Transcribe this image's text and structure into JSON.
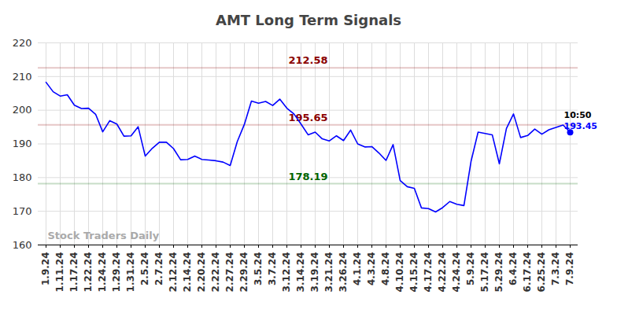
{
  "chart_data": {
    "type": "line",
    "title": "AMT Long Term Signals",
    "categories": [
      "1.9.24",
      null,
      "1.11.24",
      null,
      "1.17.24",
      null,
      "1.22.24",
      null,
      "1.24.24",
      null,
      "1.29.24",
      null,
      "1.31.24",
      null,
      "2.5.24",
      null,
      "2.7.24",
      null,
      "2.12.24",
      null,
      "2.14.24",
      null,
      "2.20.24",
      null,
      "2.22.24",
      null,
      "2.27.24",
      null,
      "2.29.24",
      null,
      "3.5.24",
      null,
      "3.7.24",
      null,
      "3.12.24",
      null,
      "3.14.24",
      null,
      "3.19.24",
      null,
      "3.21.24",
      null,
      "3.26.24",
      null,
      "4.1.24",
      null,
      "4.3.24",
      null,
      "4.8.24",
      null,
      "4.10.24",
      null,
      "4.15.24",
      null,
      "4.17.24",
      null,
      "4.22.24",
      null,
      "4.24.24",
      null,
      "5.9.24",
      null,
      "5.17.24",
      null,
      "5.29.24",
      null,
      "6.4.24",
      null,
      "6.17.24",
      null,
      "6.25.24",
      null,
      "7.3.24",
      null,
      "7.9.24"
    ],
    "values": [
      208.3,
      205.5,
      204.2,
      204.6,
      201.5,
      200.5,
      200.6,
      198.8,
      193.6,
      196.9,
      195.9,
      192.3,
      192.4,
      195.1,
      186.4,
      188.7,
      190.5,
      190.5,
      188.6,
      185.3,
      185.4,
      186.4,
      185.4,
      185.2,
      185.0,
      184.6,
      183.6,
      190.7,
      195.8,
      202.7,
      202.1,
      202.6,
      201.4,
      203.3,
      200.6,
      198.9,
      195.9,
      192.7,
      193.5,
      191.5,
      190.9,
      192.4,
      191.0,
      194.1,
      190.0,
      189.1,
      189.2,
      187.3,
      185.1,
      189.8,
      179.1,
      177.3,
      176.8,
      171.0,
      170.8,
      169.8,
      171.1,
      172.9,
      172.1,
      171.7,
      184.8,
      193.5,
      193.1,
      192.7,
      184.1,
      194.6,
      198.9,
      191.9,
      192.5,
      194.4,
      192.9,
      194.2,
      194.9,
      195.6,
      193.45
    ],
    "color": "#0000ff",
    "marker": "last",
    "last_label": "10:50",
    "reference_lines": [
      {
        "value": 212.58,
        "color": "#8b0000"
      },
      {
        "value": 195.65,
        "color": "#8b0000"
      },
      {
        "value": 178.19,
        "color": "#006400"
      }
    ],
    "watermark": "Stock Traders Daily",
    "ylim": [
      160,
      220
    ],
    "yticks": [
      160,
      170,
      180,
      190,
      200,
      210,
      220
    ],
    "grid": true
  }
}
